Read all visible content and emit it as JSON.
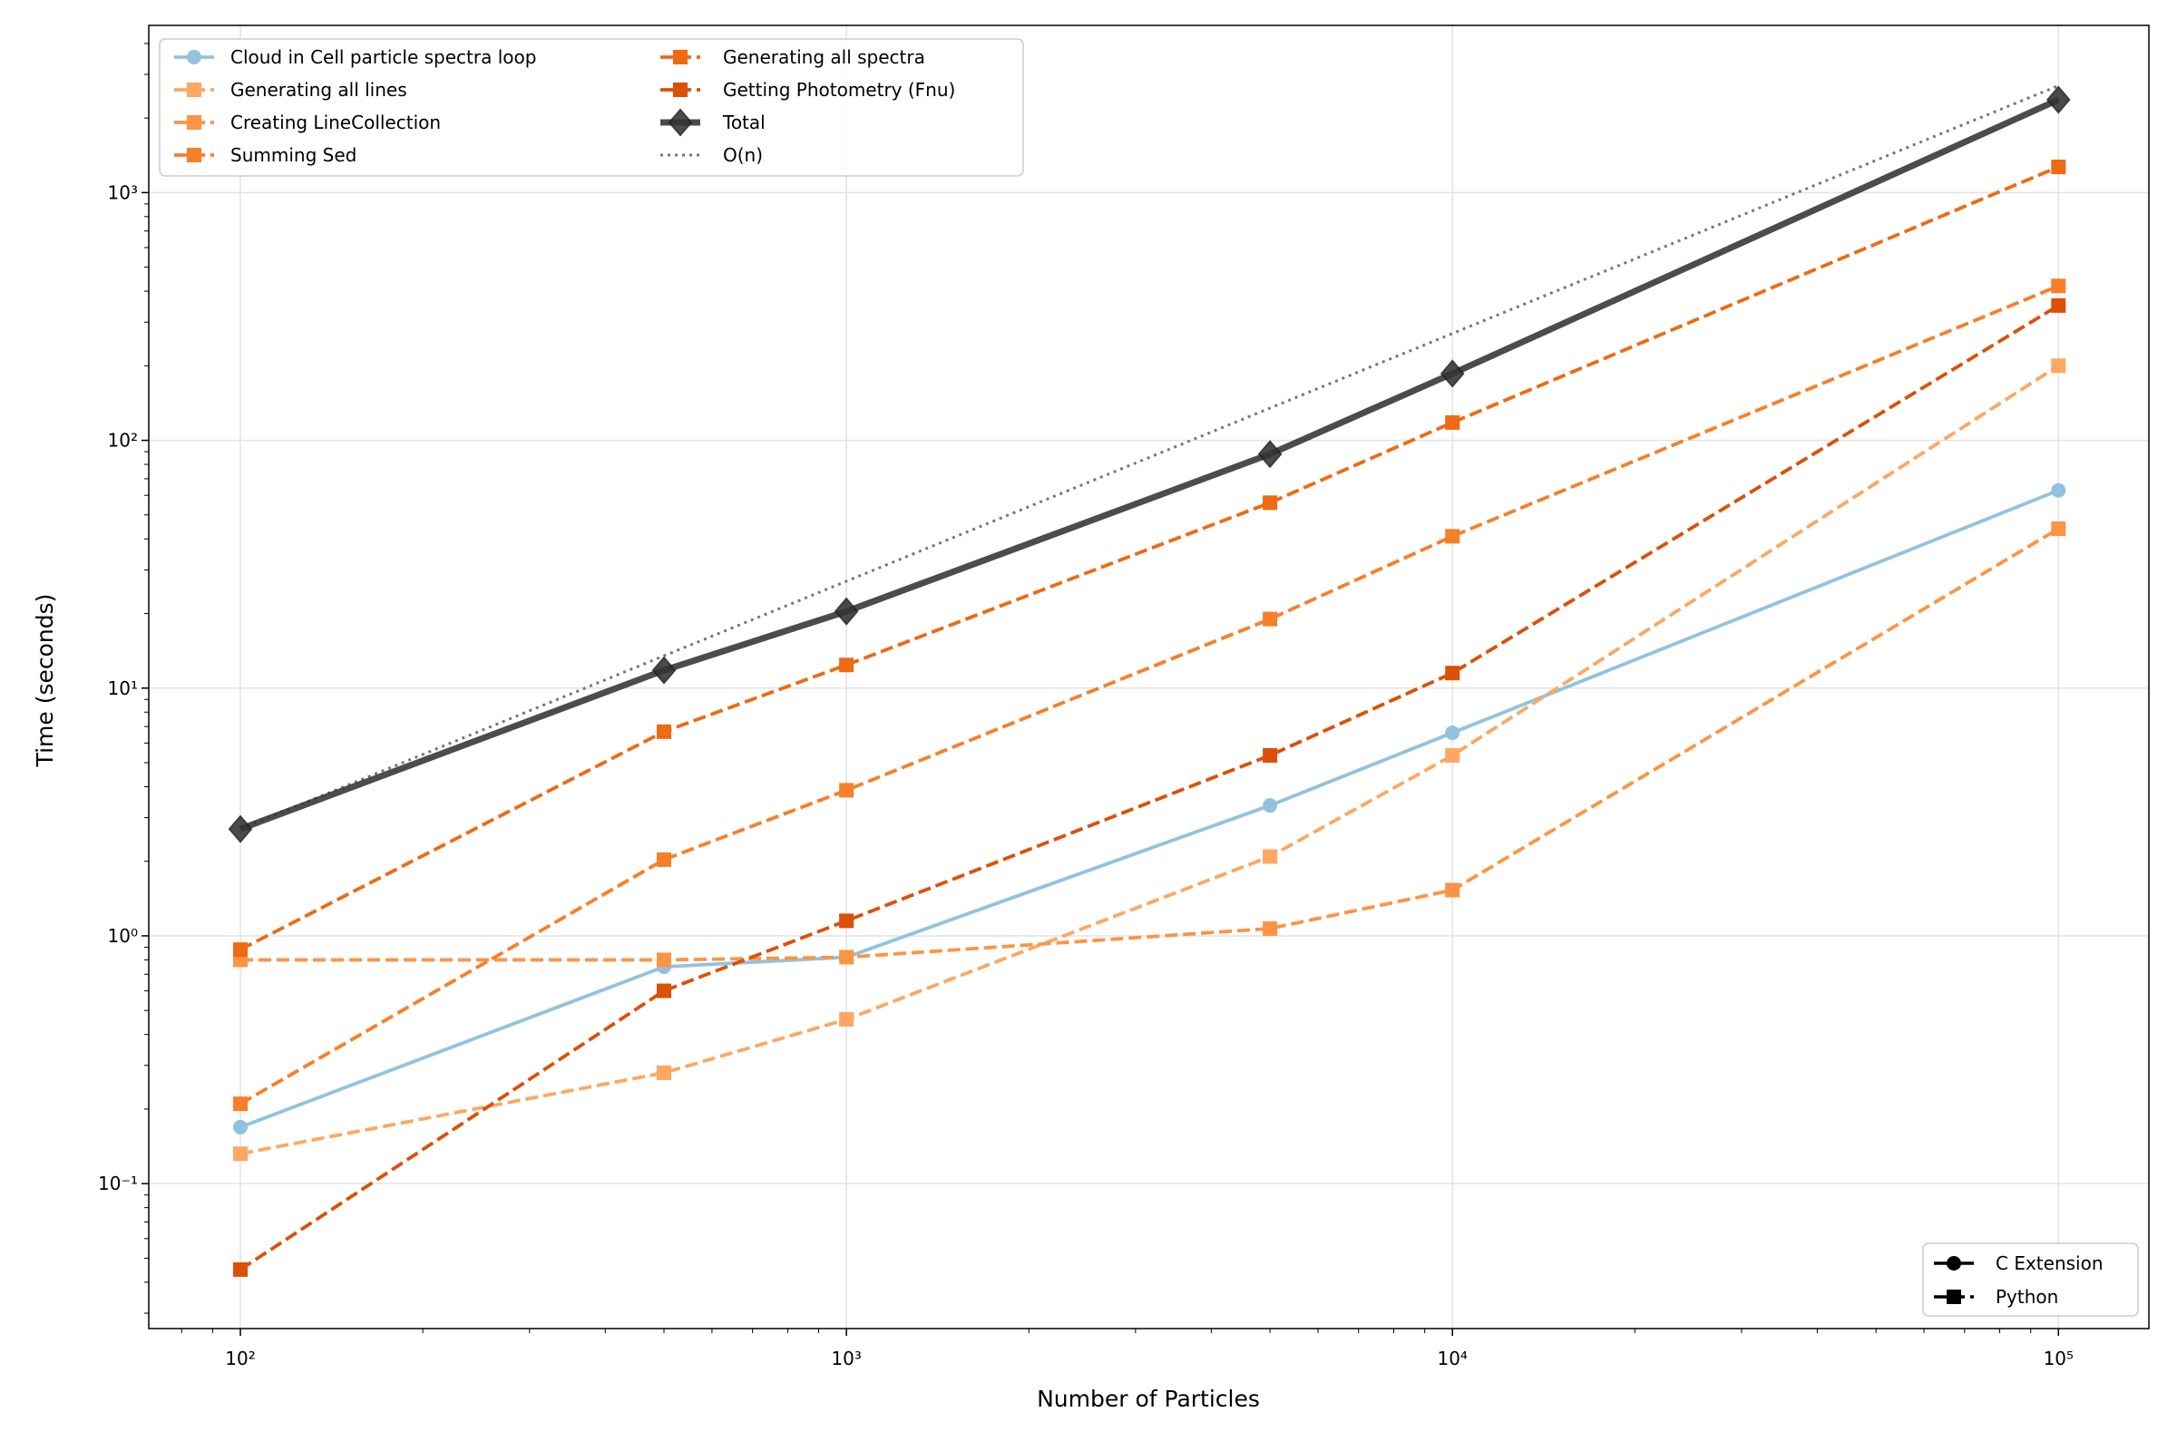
{
  "chart_data": {
    "type": "line",
    "xscale": "log",
    "yscale": "log",
    "xlabel": "Number of Particles",
    "ylabel": "Time (seconds)",
    "xlim": [
      70.6,
      141000
    ],
    "ylim": [
      0.026,
      4730
    ],
    "grid": true,
    "x": [
      100,
      500,
      1000,
      5000,
      10000,
      100000
    ],
    "x_ticks": [
      100,
      1000,
      10000,
      100000
    ],
    "x_tick_labels": [
      "10²",
      "10³",
      "10⁴",
      "10⁵"
    ],
    "y_ticks": [
      0.1,
      1,
      10,
      100,
      1000
    ],
    "y_tick_labels": [
      "10⁻¹",
      "10⁰",
      "10¹",
      "10²",
      "10³"
    ],
    "series": [
      {
        "name": "Cloud in Cell particle spectra loop",
        "color": "#92c2df",
        "style": "solid",
        "marker": "circle",
        "values": [
          0.169,
          0.75,
          0.82,
          3.36,
          6.6,
          62.8
        ]
      },
      {
        "name": "Generating all lines",
        "color": "#fda762",
        "style": "dashed",
        "marker": "square",
        "values": [
          0.132,
          0.28,
          0.46,
          2.09,
          5.35,
          200
        ]
      },
      {
        "name": "Creating LineCollection",
        "color": "#fd9443",
        "style": "dashed",
        "marker": "square",
        "values": [
          0.8,
          0.8,
          0.82,
          1.07,
          1.53,
          44
        ]
      },
      {
        "name": "Summing Sed",
        "color": "#f77f2a",
        "style": "dashed",
        "marker": "square",
        "values": [
          0.21,
          2.03,
          3.87,
          19.0,
          41,
          420
        ]
      },
      {
        "name": "Generating all spectra",
        "color": "#ee6a13",
        "style": "dashed",
        "marker": "square",
        "values": [
          0.88,
          6.67,
          12.4,
          56,
          118,
          1270
        ]
      },
      {
        "name": "Getting Photometry (Fnu)",
        "color": "#dc5008",
        "style": "dashed",
        "marker": "square",
        "values": [
          0.045,
          0.6,
          1.15,
          5.35,
          11.5,
          350
        ]
      },
      {
        "name": "Total",
        "color": "#333333",
        "style": "solid-thick",
        "marker": "diamond",
        "values": [
          2.7,
          11.8,
          20.4,
          88,
          186,
          2370
        ]
      },
      {
        "name": "O(n)",
        "color": "#777777",
        "style": "dotted",
        "marker": "none",
        "values": [
          2.7,
          13.5,
          27,
          135,
          270,
          2700
        ]
      }
    ],
    "legend_main_placement": "top-left",
    "legend_style": {
      "placement": "bottom-right",
      "entries": [
        {
          "name": "C Extension",
          "style": "solid",
          "marker": "circle"
        },
        {
          "name": "Python",
          "style": "dashed",
          "marker": "square"
        }
      ]
    }
  }
}
